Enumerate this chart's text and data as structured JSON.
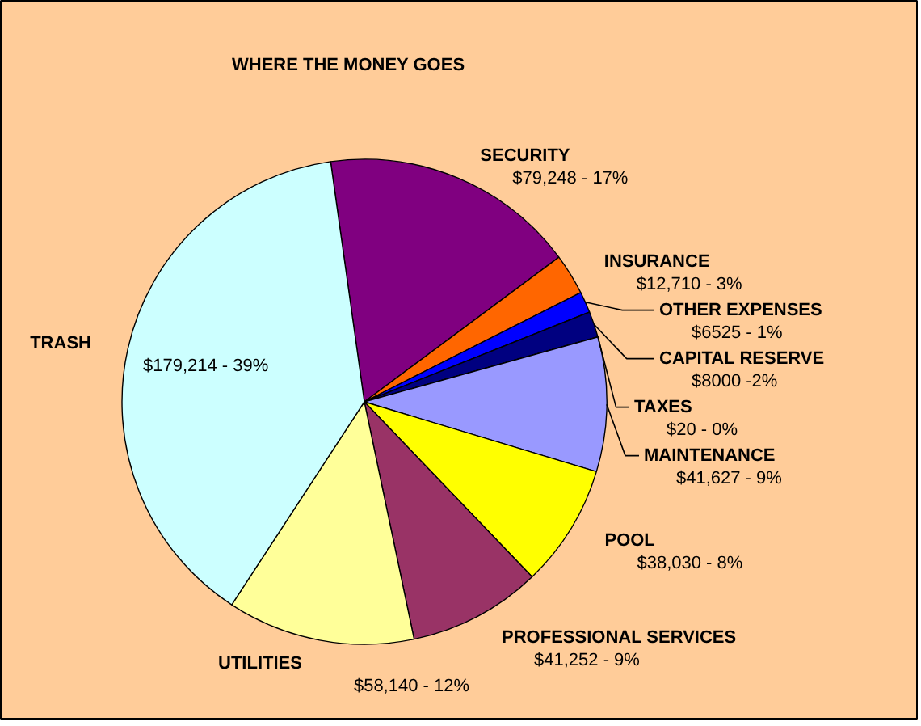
{
  "chart_data": {
    "type": "pie",
    "title": "WHERE THE MONEY GOES",
    "categories": [
      "SECURITY",
      "INSURANCE",
      "OTHER EXPENSES",
      "CAPITAL RESERVE",
      "TAXES",
      "MAINTENANCE",
      "POOL",
      "PROFESSIONAL SERVICES",
      "UTILITIES",
      "TRASH"
    ],
    "values": [
      79248,
      12710,
      6525,
      8000,
      20,
      41627,
      38030,
      41252,
      58140,
      179214
    ],
    "value_labels": [
      "$79,248 - 17%",
      "$12,710 - 3%",
      "$6525 - 1%",
      "$8000 -2%",
      "$20 - 0%",
      "$41,627 - 9%",
      "$38,030 - 8%",
      "$41,252 - 9%",
      "$58,140 - 12%",
      "$179,214 - 39%"
    ],
    "colors": [
      "#800080",
      "#ff6600",
      "#0000ff",
      "#000080",
      "#333399",
      "#9999ff",
      "#ffff00",
      "#993366",
      "#ffff99",
      "#ccffff"
    ]
  }
}
